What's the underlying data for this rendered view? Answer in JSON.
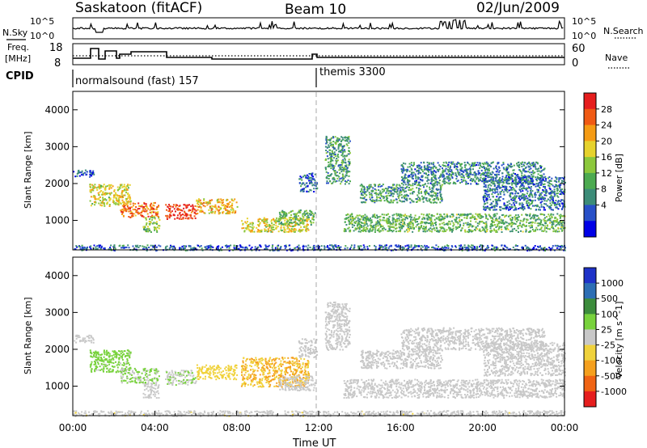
{
  "header": {
    "station": "Saskatoon (fitACF)",
    "beam": "Beam 10",
    "date": "02/Jun/2009"
  },
  "noise_panel": {
    "left_label": "N.Sky",
    "right_label": "N.Search",
    "left_ticks": [
      "10^5",
      "10^0"
    ],
    "right_ticks": [
      "10^5",
      "10^0"
    ]
  },
  "freq_panel": {
    "left_label_line1": "Freq.",
    "left_label_line2": "[MHz]",
    "right_label": "Nave",
    "left_ticks": [
      "18",
      "8"
    ],
    "right_ticks": [
      "60",
      "0"
    ]
  },
  "cpid_panel": {
    "label": "CPID",
    "programs": [
      {
        "name": "normalsound (fast) 157",
        "start_hour": 0
      },
      {
        "name": "themis 3300",
        "start_hour": 12.0
      }
    ]
  },
  "chart_data": [
    {
      "type": "heatmap",
      "title": "",
      "ylabel": "Slant Range [km]",
      "xlabel": "",
      "xlim": [
        0,
        24
      ],
      "ylim": [
        200,
        4500
      ],
      "y_ticks": [
        "1000",
        "2000",
        "3000",
        "4000"
      ],
      "colorbar": {
        "label": "Power [dB]",
        "range": [
          0,
          30
        ],
        "ticks": [
          "28",
          "24",
          "20",
          "16",
          "12",
          "8",
          "4"
        ],
        "colors": [
          "#0000e6",
          "#2850c8",
          "#3c8c78",
          "#4caa50",
          "#8cc83c",
          "#e6d22d",
          "#f59b14",
          "#f05a14",
          "#e61e1e"
        ]
      },
      "echo_regions": [
        {
          "start": 0.0,
          "end": 1.0,
          "range_start": 2200,
          "range_end": 2400,
          "power": 5
        },
        {
          "start": 0.8,
          "end": 2.8,
          "range_start": 1400,
          "range_end": 2000,
          "power": 18
        },
        {
          "start": 2.3,
          "end": 4.2,
          "range_start": 1100,
          "range_end": 1500,
          "power": 24
        },
        {
          "start": 3.4,
          "end": 4.2,
          "range_start": 700,
          "range_end": 1100,
          "power": 14
        },
        {
          "start": 4.5,
          "end": 6.0,
          "range_start": 1050,
          "range_end": 1450,
          "power": 28
        },
        {
          "start": 6.0,
          "end": 8.0,
          "range_start": 1200,
          "range_end": 1600,
          "power": 20
        },
        {
          "start": 8.2,
          "end": 11.5,
          "range_start": 700,
          "range_end": 1100,
          "power": 18
        },
        {
          "start": 10.0,
          "end": 11.8,
          "range_start": 900,
          "range_end": 1300,
          "power": 12
        },
        {
          "start": 11.0,
          "end": 11.9,
          "range_start": 1800,
          "range_end": 2300,
          "power": 6
        },
        {
          "start": 12.3,
          "end": 13.5,
          "range_start": 2000,
          "range_end": 3300,
          "power": 10
        },
        {
          "start": 13.2,
          "end": 24.0,
          "range_start": 700,
          "range_end": 1200,
          "power": 12
        },
        {
          "start": 14.0,
          "end": 18.0,
          "range_start": 1500,
          "range_end": 2000,
          "power": 10
        },
        {
          "start": 16.0,
          "end": 23.0,
          "range_start": 2000,
          "range_end": 2600,
          "power": 8
        },
        {
          "start": 20.0,
          "end": 24.0,
          "range_start": 1300,
          "range_end": 2200,
          "power": 7
        },
        {
          "start": 0.0,
          "end": 24.0,
          "range_start": 200,
          "range_end": 350,
          "power": 6
        }
      ]
    },
    {
      "type": "heatmap",
      "title": "",
      "ylabel": "Slant Range [km]",
      "xlabel": "Time UT",
      "xlim": [
        0,
        24
      ],
      "ylim": [
        200,
        4500
      ],
      "y_ticks": [
        "1000",
        "2000",
        "3000",
        "4000"
      ],
      "x_ticks": [
        "00:00",
        "04:00",
        "08:00",
        "12:00",
        "16:00",
        "20:00",
        "00:00"
      ],
      "colorbar": {
        "label": "Velocity [m s^-1]",
        "range": [
          -1200,
          1200
        ],
        "ticks": [
          "1000",
          "500",
          "100",
          "25",
          "-25",
          "-100",
          "-500",
          "-1000"
        ],
        "colors": [
          "#1e32c8",
          "#2c6eb4",
          "#3c8c3c",
          "#78d23c",
          "#c8c8c8",
          "#f0d23c",
          "#f5a01e",
          "#f06414",
          "#e61e1e"
        ]
      },
      "echo_regions": [
        {
          "start": 0.0,
          "end": 1.0,
          "range_start": 2200,
          "range_end": 2400,
          "velocity": 0
        },
        {
          "start": 0.8,
          "end": 2.8,
          "range_start": 1400,
          "range_end": 2000,
          "velocity": 200
        },
        {
          "start": 2.3,
          "end": 4.2,
          "range_start": 1100,
          "range_end": 1500,
          "velocity": 150
        },
        {
          "start": 3.4,
          "end": 4.2,
          "range_start": 700,
          "range_end": 1100,
          "velocity": 0
        },
        {
          "start": 4.5,
          "end": 6.0,
          "range_start": 1050,
          "range_end": 1450,
          "velocity": 120
        },
        {
          "start": 6.0,
          "end": 8.0,
          "range_start": 1200,
          "range_end": 1600,
          "velocity": -300
        },
        {
          "start": 8.2,
          "end": 11.5,
          "range_start": 1000,
          "range_end": 1800,
          "velocity": -400
        },
        {
          "start": 10.0,
          "end": 11.8,
          "range_start": 900,
          "range_end": 1300,
          "velocity": 0
        },
        {
          "start": 11.0,
          "end": 11.9,
          "range_start": 1800,
          "range_end": 2300,
          "velocity": 0
        },
        {
          "start": 12.3,
          "end": 13.5,
          "range_start": 2000,
          "range_end": 3300,
          "velocity": 0
        },
        {
          "start": 13.2,
          "end": 24.0,
          "range_start": 700,
          "range_end": 1200,
          "velocity": 0
        },
        {
          "start": 14.0,
          "end": 18.0,
          "range_start": 1500,
          "range_end": 2000,
          "velocity": 0
        },
        {
          "start": 16.0,
          "end": 23.0,
          "range_start": 2000,
          "range_end": 2600,
          "velocity": 0
        },
        {
          "start": 20.0,
          "end": 24.0,
          "range_start": 1300,
          "range_end": 2200,
          "velocity": 0
        },
        {
          "start": 0.0,
          "end": 24.0,
          "range_start": 200,
          "range_end": 350,
          "velocity": -60
        }
      ]
    }
  ]
}
